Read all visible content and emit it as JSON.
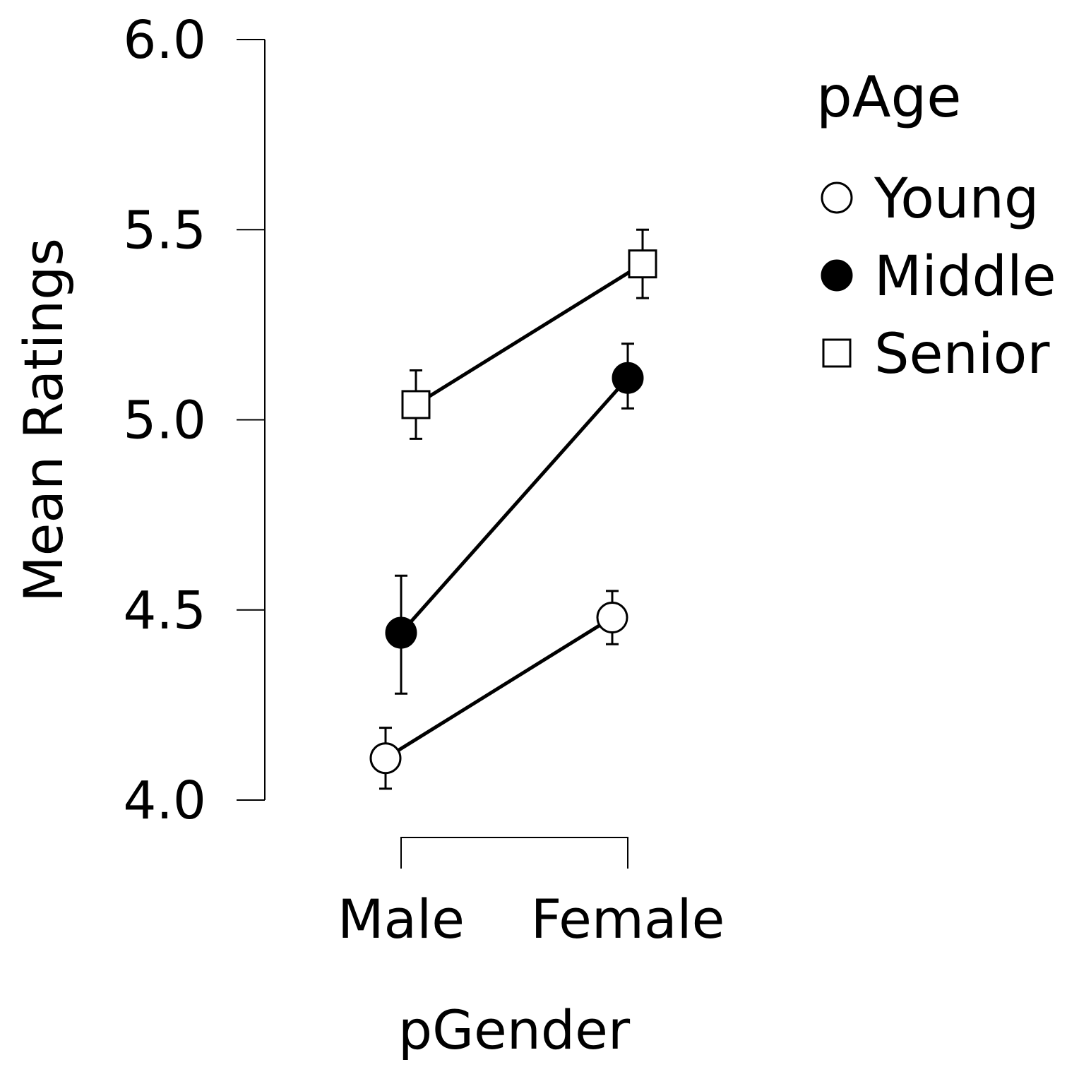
{
  "chart_data": {
    "type": "line",
    "title": "",
    "xlabel": "pGender",
    "ylabel": "Mean Ratings",
    "categories": [
      "Male",
      "Female"
    ],
    "ylim": [
      4.0,
      6.0
    ],
    "yticks": [
      "4.0",
      "4.5",
      "5.0",
      "5.5",
      "6.0"
    ],
    "grid": false,
    "legend": {
      "title": "pAge",
      "placement": "right"
    },
    "series": [
      {
        "name": "Young",
        "marker": "open-circle",
        "values": [
          4.11,
          4.48
        ],
        "error_low": [
          4.03,
          4.41
        ],
        "error_high": [
          4.19,
          4.55
        ]
      },
      {
        "name": "Middle",
        "marker": "filled-circle",
        "values": [
          4.44,
          5.11
        ],
        "error_low": [
          4.28,
          5.03
        ],
        "error_high": [
          4.59,
          5.2
        ]
      },
      {
        "name": "Senior",
        "marker": "open-square",
        "values": [
          5.04,
          5.41
        ],
        "error_low": [
          4.95,
          5.32
        ],
        "error_high": [
          5.13,
          5.5
        ]
      }
    ],
    "colors": {
      "line": "#000000",
      "fill_open": "#ffffff",
      "fill_filled": "#000000"
    }
  }
}
